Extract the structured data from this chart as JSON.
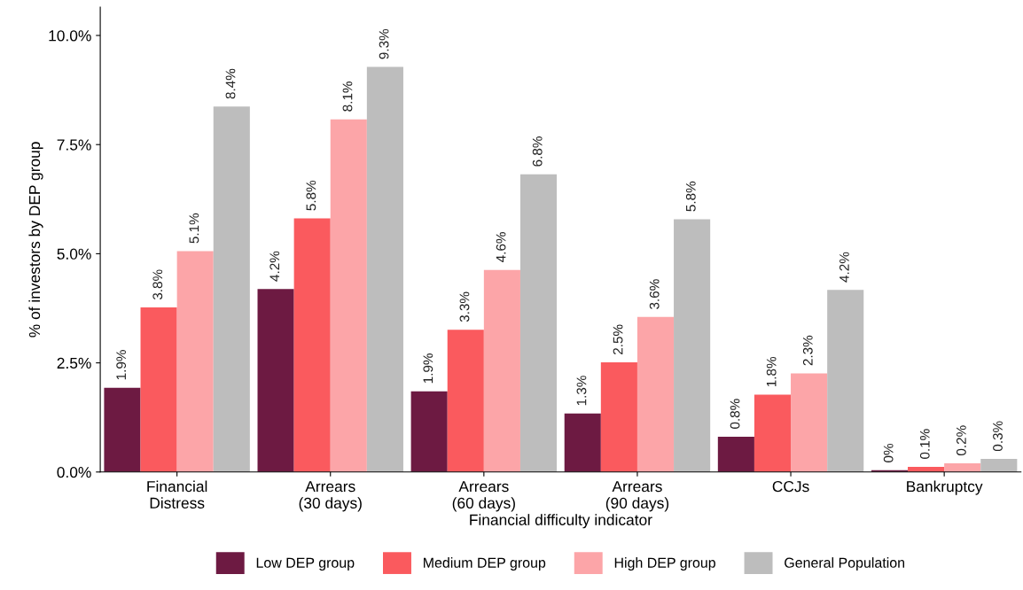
{
  "chart_data": {
    "type": "bar",
    "xlabel": "Financial difficulty indicator",
    "ylabel": "% of investors by DEP group",
    "categories": [
      "Financial\nDistress",
      "Arrears\n(30 days)",
      "Arrears\n(60 days)",
      "Arrears\n(90 days)",
      "CCJs",
      "Bankruptcy"
    ],
    "series": [
      {
        "name": "Low DEP group",
        "color": "#6d1a42",
        "values": [
          1.93,
          4.19,
          1.85,
          1.34,
          0.81,
          0.04
        ],
        "value_labels": [
          "1.9%",
          "4.2%",
          "1.9%",
          "1.3%",
          "0.8%",
          "0%"
        ]
      },
      {
        "name": "Medium DEP group",
        "color": "#fa5a5e",
        "values": [
          3.77,
          5.81,
          3.26,
          2.51,
          1.77,
          0.12
        ],
        "value_labels": [
          "3.8%",
          "5.8%",
          "3.3%",
          "2.5%",
          "1.8%",
          "0.1%"
        ]
      },
      {
        "name": "High DEP group",
        "color": "#fca5a8",
        "values": [
          5.06,
          8.08,
          4.63,
          3.55,
          2.26,
          0.2
        ],
        "value_labels": [
          "5.1%",
          "8.1%",
          "4.6%",
          "3.6%",
          "2.3%",
          "0.2%"
        ]
      },
      {
        "name": "General Population",
        "color": "#bdbdbd",
        "values": [
          8.37,
          9.28,
          6.82,
          5.79,
          4.17,
          0.3
        ],
        "value_labels": [
          "8.4%",
          "9.3%",
          "6.8%",
          "5.8%",
          "4.2%",
          "0.3%"
        ]
      }
    ],
    "ylim": [
      0,
      10.65
    ],
    "yticks": [
      {
        "value": 0,
        "label": "0.0%"
      },
      {
        "value": 2.5,
        "label": "2.5%"
      },
      {
        "value": 5,
        "label": "5.0%"
      },
      {
        "value": 7.5,
        "label": "7.5%"
      },
      {
        "value": 10,
        "label": "10.0%"
      }
    ],
    "grid": false,
    "legend": "bottom"
  }
}
